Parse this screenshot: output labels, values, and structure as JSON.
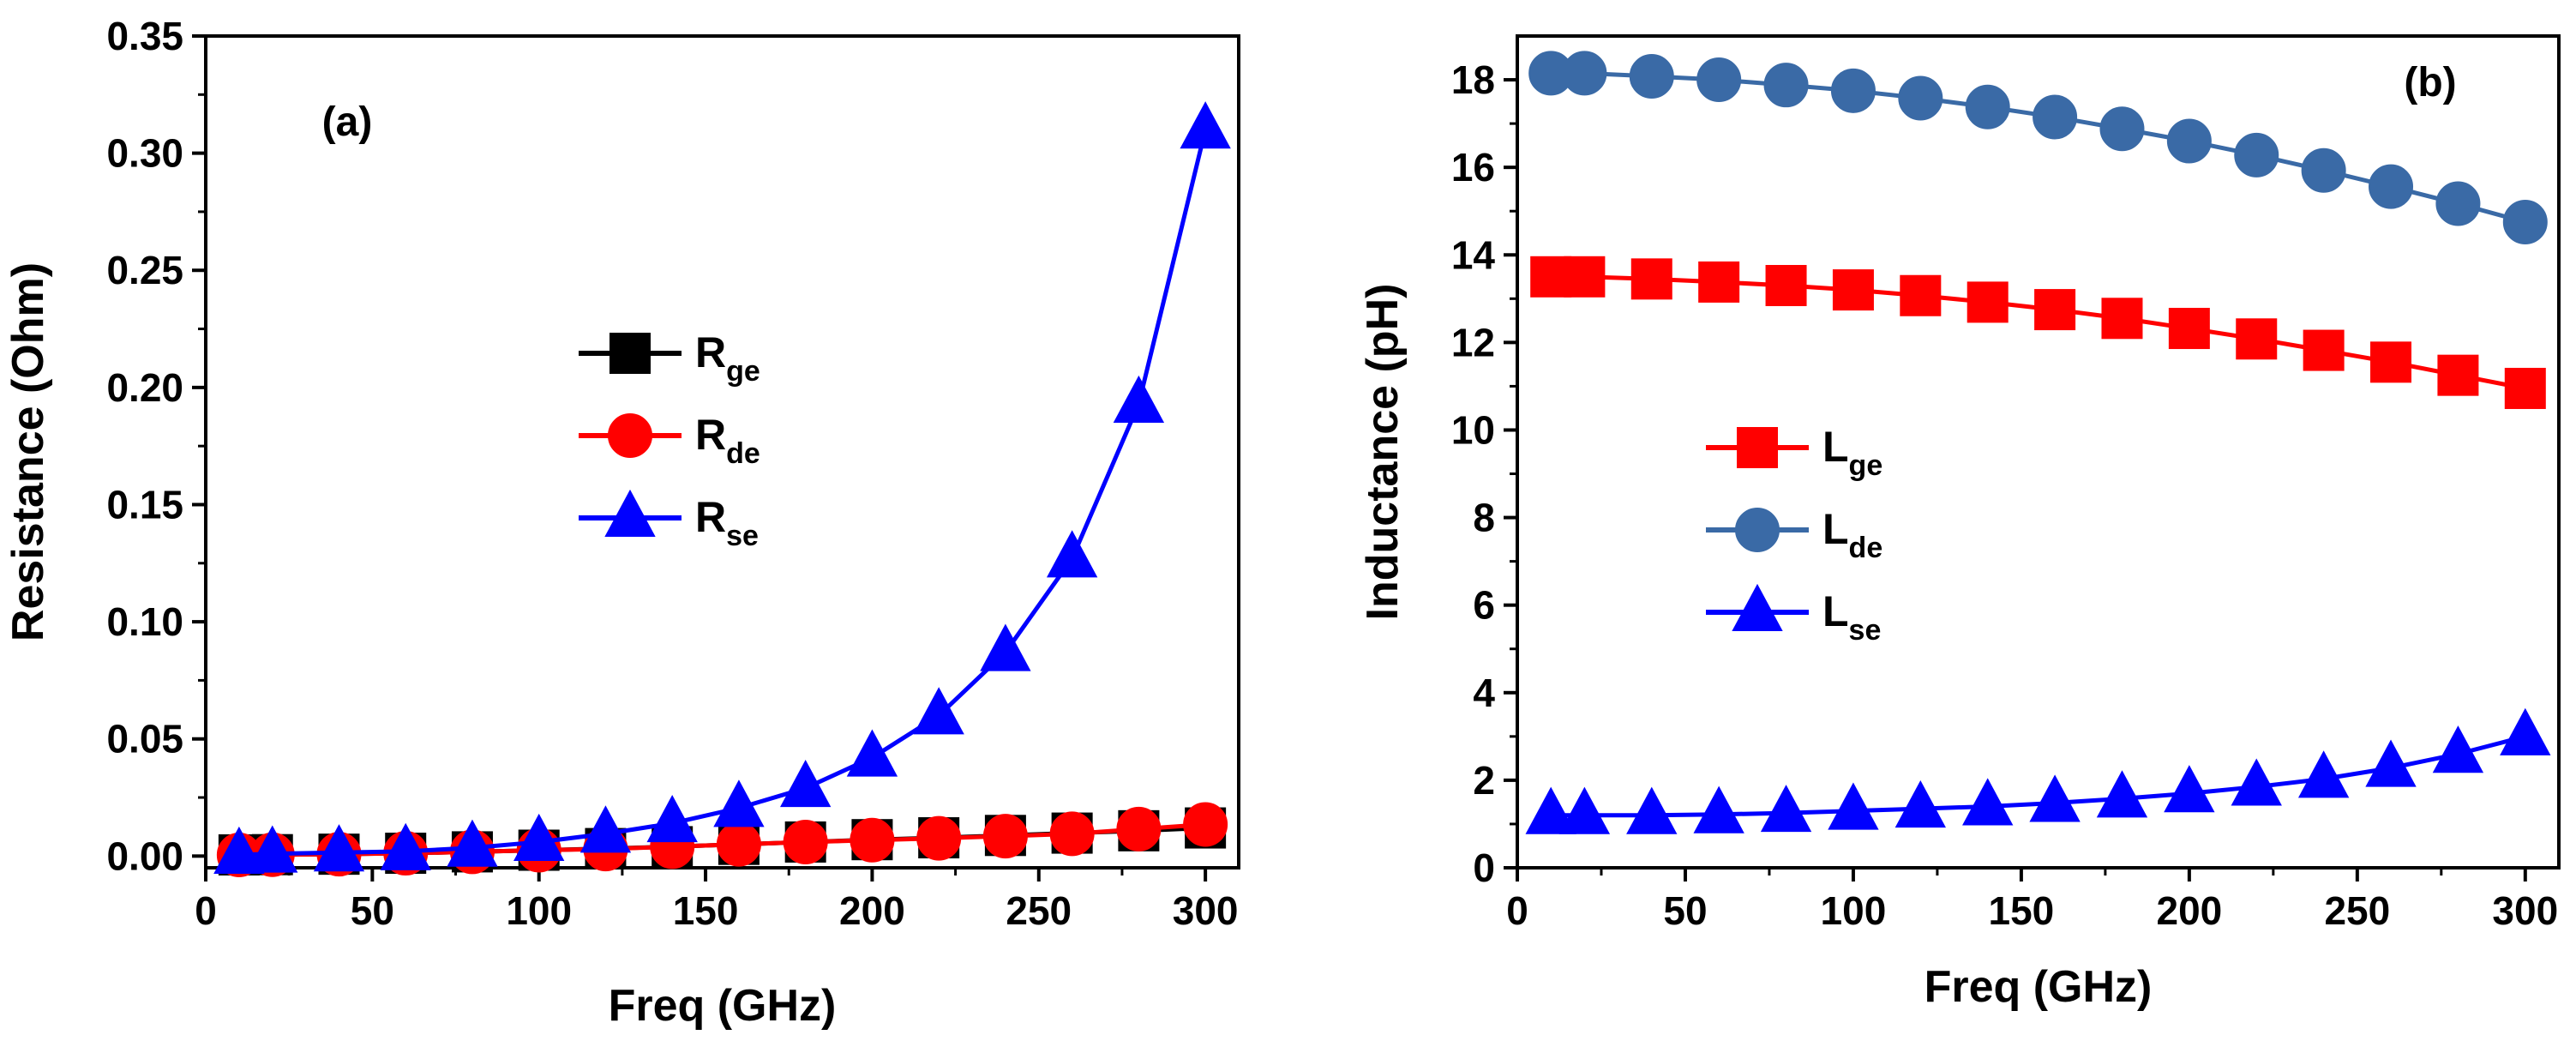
{
  "chart_data": [
    {
      "type": "line",
      "panel_label": "(a)",
      "xlabel": "Freq (GHz)",
      "ylabel": "Resistance (Ohm)",
      "xlim": [
        0,
        310
      ],
      "ylim": [
        -0.005,
        0.35
      ],
      "xticks": [
        0,
        50,
        100,
        150,
        200,
        250,
        300
      ],
      "xtick_labels": [
        "0",
        "50",
        "100",
        "150",
        "200",
        "250",
        "300"
      ],
      "yticks": [
        0,
        0.05,
        0.1,
        0.15,
        0.2,
        0.25,
        0.3,
        0.35
      ],
      "ytick_labels": [
        "0.00",
        "0.05",
        "0.10",
        "0.15",
        "0.20",
        "0.25",
        "0.30",
        "0.35"
      ],
      "x": [
        10,
        20,
        40,
        60,
        80,
        100,
        120,
        140,
        160,
        180,
        200,
        220,
        240,
        260,
        280,
        300
      ],
      "legend_position": "center-left",
      "series": [
        {
          "name": "R",
          "sub": "ge",
          "marker": "square",
          "color": "#000000",
          "values": [
            0.0005,
            0.0006,
            0.0008,
            0.0012,
            0.0018,
            0.0025,
            0.0032,
            0.004,
            0.005,
            0.006,
            0.007,
            0.0078,
            0.0088,
            0.0098,
            0.0108,
            0.012
          ]
        },
        {
          "name": "R",
          "sub": "de",
          "marker": "circle",
          "color": "#ff0000",
          "values": [
            0.0005,
            0.0006,
            0.0008,
            0.0012,
            0.0018,
            0.0025,
            0.003,
            0.004,
            0.005,
            0.006,
            0.0068,
            0.0076,
            0.0085,
            0.0095,
            0.0115,
            0.0135
          ]
        },
        {
          "name": "R",
          "sub": "se",
          "marker": "triangle",
          "color": "#0000ff",
          "values": [
            0.0005,
            0.001,
            0.0015,
            0.002,
            0.0035,
            0.006,
            0.0095,
            0.014,
            0.0205,
            0.029,
            0.042,
            0.06,
            0.087,
            0.127,
            0.193,
            0.31
          ]
        }
      ]
    },
    {
      "type": "line",
      "panel_label": "(b)",
      "xlabel": "Freq (GHz)",
      "ylabel": "Inductance (pH)",
      "xlim": [
        0,
        310
      ],
      "ylim": [
        0,
        19
      ],
      "xticks": [
        0,
        50,
        100,
        150,
        200,
        250,
        300
      ],
      "xtick_labels": [
        "0",
        "50",
        "100",
        "150",
        "200",
        "250",
        "300"
      ],
      "yticks": [
        0,
        2,
        4,
        6,
        8,
        10,
        12,
        14,
        16,
        18
      ],
      "ytick_labels": [
        "0",
        "2",
        "4",
        "6",
        "8",
        "10",
        "12",
        "14",
        "16",
        "18"
      ],
      "x": [
        10,
        20,
        40,
        60,
        80,
        100,
        120,
        140,
        160,
        180,
        200,
        220,
        240,
        260,
        280,
        300
      ],
      "legend_position": "center-left",
      "series": [
        {
          "name": "L",
          "sub": "ge",
          "marker": "square",
          "color": "#ff0000",
          "values": [
            13.5,
            13.5,
            13.45,
            13.38,
            13.3,
            13.2,
            13.07,
            12.92,
            12.75,
            12.55,
            12.32,
            12.08,
            11.82,
            11.55,
            11.25,
            10.95
          ]
        },
        {
          "name": "L",
          "sub": "de",
          "marker": "circle",
          "color": "#3a6aa6",
          "values": [
            18.15,
            18.15,
            18.08,
            18.0,
            17.88,
            17.75,
            17.58,
            17.38,
            17.15,
            16.88,
            16.6,
            16.28,
            15.93,
            15.56,
            15.17,
            14.75
          ]
        },
        {
          "name": "L",
          "sub": "se",
          "marker": "triangle",
          "color": "#0000ff",
          "values": [
            1.2,
            1.2,
            1.2,
            1.22,
            1.25,
            1.3,
            1.35,
            1.4,
            1.48,
            1.58,
            1.7,
            1.85,
            2.03,
            2.28,
            2.6,
            3.0
          ]
        }
      ]
    }
  ]
}
